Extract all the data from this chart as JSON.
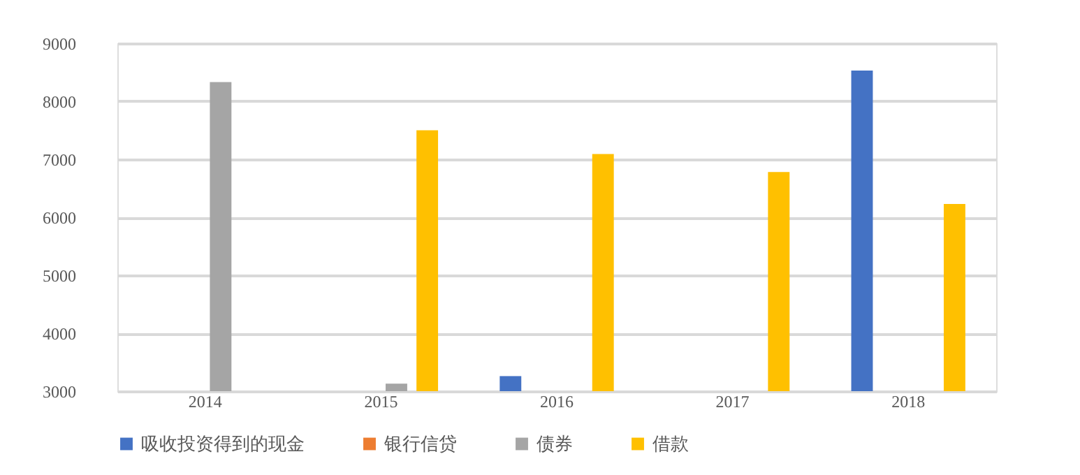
{
  "chart_data": {
    "type": "bar",
    "categories": [
      "2014",
      "2015",
      "2016",
      "2017",
      "2018"
    ],
    "series": [
      {
        "name": "吸收投资得到的现金",
        "color": "#4472c4",
        "values": [
          null,
          null,
          3260,
          null,
          8530
        ]
      },
      {
        "name": "银行信贷",
        "color": "#ed7d31",
        "values": [
          null,
          null,
          null,
          null,
          null
        ]
      },
      {
        "name": "债券",
        "color": "#a5a5a5",
        "values": [
          8330,
          3130,
          null,
          null,
          null
        ]
      },
      {
        "name": "借款",
        "color": "#ffc000",
        "values": [
          null,
          7500,
          7090,
          6780,
          6230
        ]
      }
    ],
    "ylim": [
      3000,
      9000
    ],
    "yticks": [
      3000,
      4000,
      5000,
      6000,
      7000,
      8000,
      9000
    ],
    "grid": "y",
    "legend": "bottom"
  }
}
